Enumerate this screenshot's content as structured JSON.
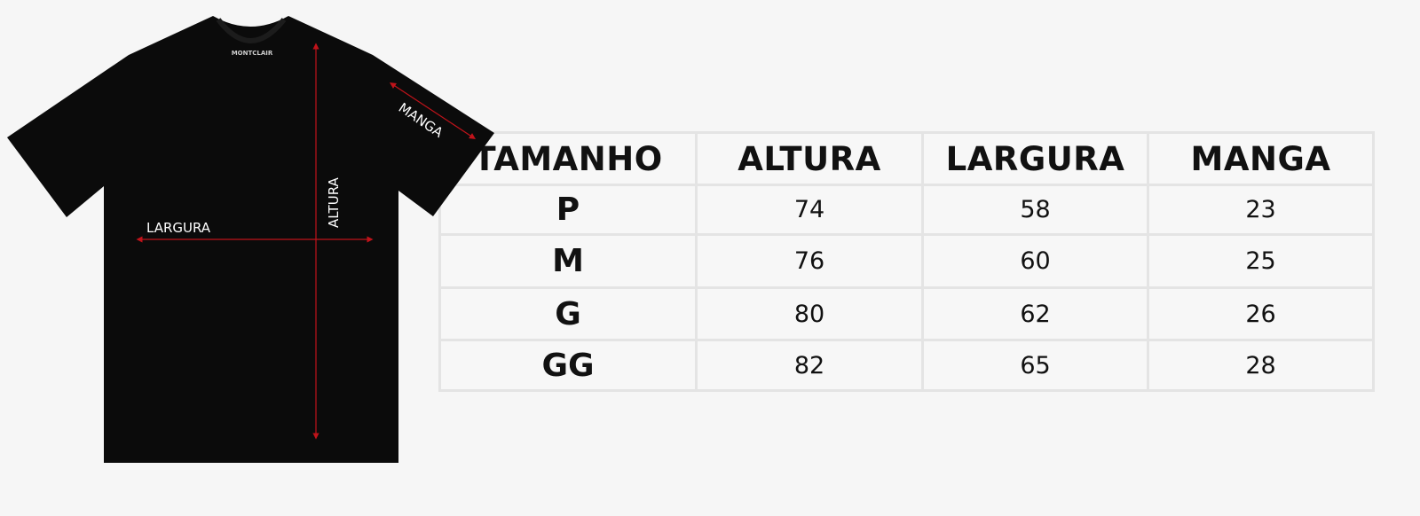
{
  "diagram": {
    "brand_label": "MONTCLAIR",
    "measure_labels": {
      "largura": "LARGURA",
      "altura": "ALTURA",
      "manga": "MANGA"
    },
    "colors": {
      "shirt": "#0b0b0b",
      "arrow": "#c0131a",
      "grid": "#e4e4e4",
      "background": "#f6f6f6"
    }
  },
  "table": {
    "headers": [
      "TAMANHO",
      "ALTURA",
      "LARGURA",
      "MANGA"
    ],
    "rows": [
      [
        "P",
        "74",
        "58",
        "23"
      ],
      [
        "M",
        "76",
        "60",
        "25"
      ],
      [
        "G",
        "80",
        "62",
        "26"
      ],
      [
        "GG",
        "82",
        "65",
        "28"
      ]
    ]
  }
}
